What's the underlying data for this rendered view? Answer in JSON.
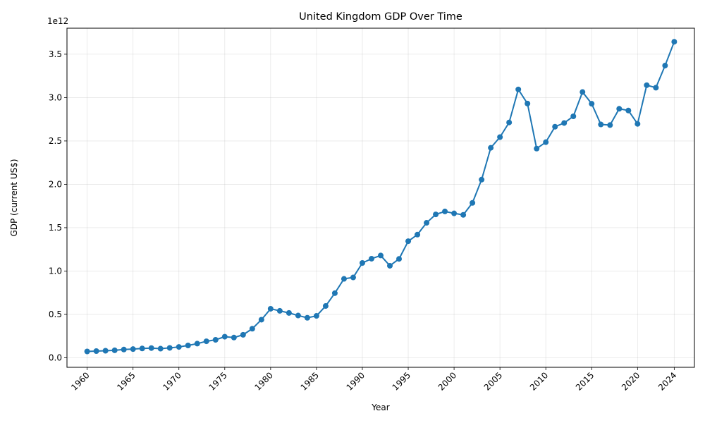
{
  "chart_data": {
    "type": "line",
    "title": "United Kingdom GDP Over Time",
    "xlabel": "Year",
    "ylabel": "GDP (current US$)",
    "y_offset_label": "1e12",
    "y_scale": 1000000000000.0,
    "xlim": [
      1957.8,
      2026.2
    ],
    "ylim": [
      -0.11,
      3.8
    ],
    "x_ticks": [
      1960,
      1965,
      1970,
      1975,
      1980,
      1985,
      1990,
      1995,
      2000,
      2005,
      2010,
      2015,
      2020,
      2024
    ],
    "x_tick_labels": [
      "1960",
      "1965",
      "1970",
      "1975",
      "1980",
      "1985",
      "1990",
      "1995",
      "2000",
      "2005",
      "2010",
      "2015",
      "2020",
      "2024"
    ],
    "y_ticks": [
      0.0,
      0.5,
      1.0,
      1.5,
      2.0,
      2.5,
      3.0,
      3.5
    ],
    "y_tick_labels": [
      "0.0",
      "0.5",
      "1.0",
      "1.5",
      "2.0",
      "2.5",
      "3.0",
      "3.5"
    ],
    "grid": true,
    "color": "#1f77b4",
    "series": [
      {
        "x": [
          1960,
          1961,
          1962,
          1963,
          1964,
          1965,
          1966,
          1967,
          1968,
          1969,
          1970,
          1971,
          1972,
          1973,
          1974,
          1975,
          1976,
          1977,
          1978,
          1979,
          1980,
          1981,
          1982,
          1983,
          1984,
          1985,
          1986,
          1987,
          1988,
          1989,
          1990,
          1991,
          1992,
          1993,
          1994,
          1995,
          1996,
          1997,
          1998,
          1999,
          2000,
          2001,
          2002,
          2003,
          2004,
          2005,
          2006,
          2007,
          2008,
          2009,
          2010,
          2011,
          2012,
          2013,
          2014,
          2015,
          2016,
          2017,
          2018,
          2019,
          2020,
          2021,
          2022,
          2023,
          2024
        ],
        "values": [
          0.073,
          0.077,
          0.081,
          0.086,
          0.095,
          0.1,
          0.107,
          0.112,
          0.105,
          0.114,
          0.125,
          0.142,
          0.163,
          0.19,
          0.207,
          0.243,
          0.233,
          0.265,
          0.335,
          0.439,
          0.565,
          0.541,
          0.517,
          0.487,
          0.461,
          0.483,
          0.597,
          0.745,
          0.91,
          0.926,
          1.093,
          1.142,
          1.179,
          1.061,
          1.14,
          1.344,
          1.42,
          1.556,
          1.653,
          1.687,
          1.665,
          1.648,
          1.786,
          2.054,
          2.421,
          2.544,
          2.713,
          3.094,
          2.931,
          2.412,
          2.486,
          2.664,
          2.707,
          2.784,
          3.064,
          2.929,
          2.69,
          2.683,
          2.871,
          2.851,
          2.697,
          3.143,
          3.114,
          3.369,
          3.644
        ]
      }
    ]
  }
}
